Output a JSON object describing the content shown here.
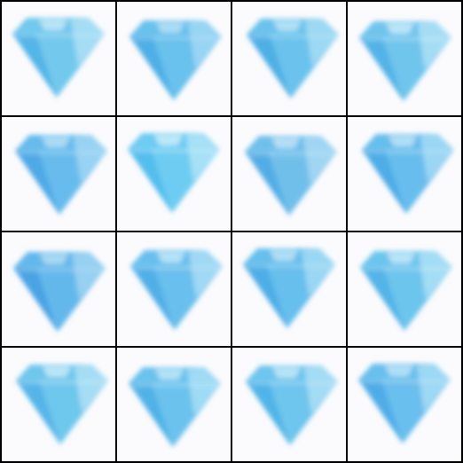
{
  "grid": {
    "rows": 4,
    "columns": 4,
    "background_color": "#000000",
    "tile_background_color": "#fbfbfd"
  },
  "tiles": [
    {
      "subject": "diamond-icon",
      "color": "#5bbfea",
      "highlight": "#cfeefb",
      "shade": "#3aa6e3"
    },
    {
      "subject": "diamond-icon",
      "color": "#4fb6ea",
      "highlight": "#bfe6f8",
      "shade": "#3aa0e0"
    },
    {
      "subject": "diamond-icon",
      "color": "#52b8ea",
      "highlight": "#c7ebfa",
      "shade": "#389fdf"
    },
    {
      "subject": "diamond-icon",
      "color": "#58bbea",
      "highlight": "#d2f0fb",
      "shade": "#3ea4e2"
    },
    {
      "subject": "diamond-icon",
      "color": "#4db0ea",
      "highlight": "#c1e7f8",
      "shade": "#3b9ae2"
    },
    {
      "subject": "diamond-icon",
      "color": "#55c3f0",
      "highlight": "#d6f3fc",
      "shade": "#3fb2eb"
    },
    {
      "subject": "diamond-icon",
      "color": "#58b5e8",
      "highlight": "#cbeaf9",
      "shade": "#3ea0e0"
    },
    {
      "subject": "diamond-icon",
      "color": "#4eb3ea",
      "highlight": "#c9ebfa",
      "shade": "#3a9ee1"
    },
    {
      "subject": "diamond-icon",
      "color": "#49ade8",
      "highlight": "#bfe3f7",
      "shade": "#3592de"
    },
    {
      "subject": "diamond-icon",
      "color": "#4fb5ea",
      "highlight": "#cdeefb",
      "shade": "#3ca2e2"
    },
    {
      "subject": "diamond-icon",
      "color": "#4db4ea",
      "highlight": "#c6ebfa",
      "shade": "#3aa1e2"
    },
    {
      "subject": "diamond-icon",
      "color": "#54bbea",
      "highlight": "#d0f0fb",
      "shade": "#3ea6e3"
    },
    {
      "subject": "diamond-icon",
      "color": "#56bdea",
      "highlight": "#d4f1fb",
      "shade": "#3fa8e3"
    },
    {
      "subject": "diamond-icon",
      "color": "#51b8ea",
      "highlight": "#cbeefb",
      "shade": "#3ca4e2"
    },
    {
      "subject": "diamond-icon",
      "color": "#55bbea",
      "highlight": "#cfeffb",
      "shade": "#3da6e3"
    },
    {
      "subject": "diamond-icon",
      "color": "#50b4ea",
      "highlight": "#c8ecfa",
      "shade": "#3a9fe1"
    }
  ]
}
